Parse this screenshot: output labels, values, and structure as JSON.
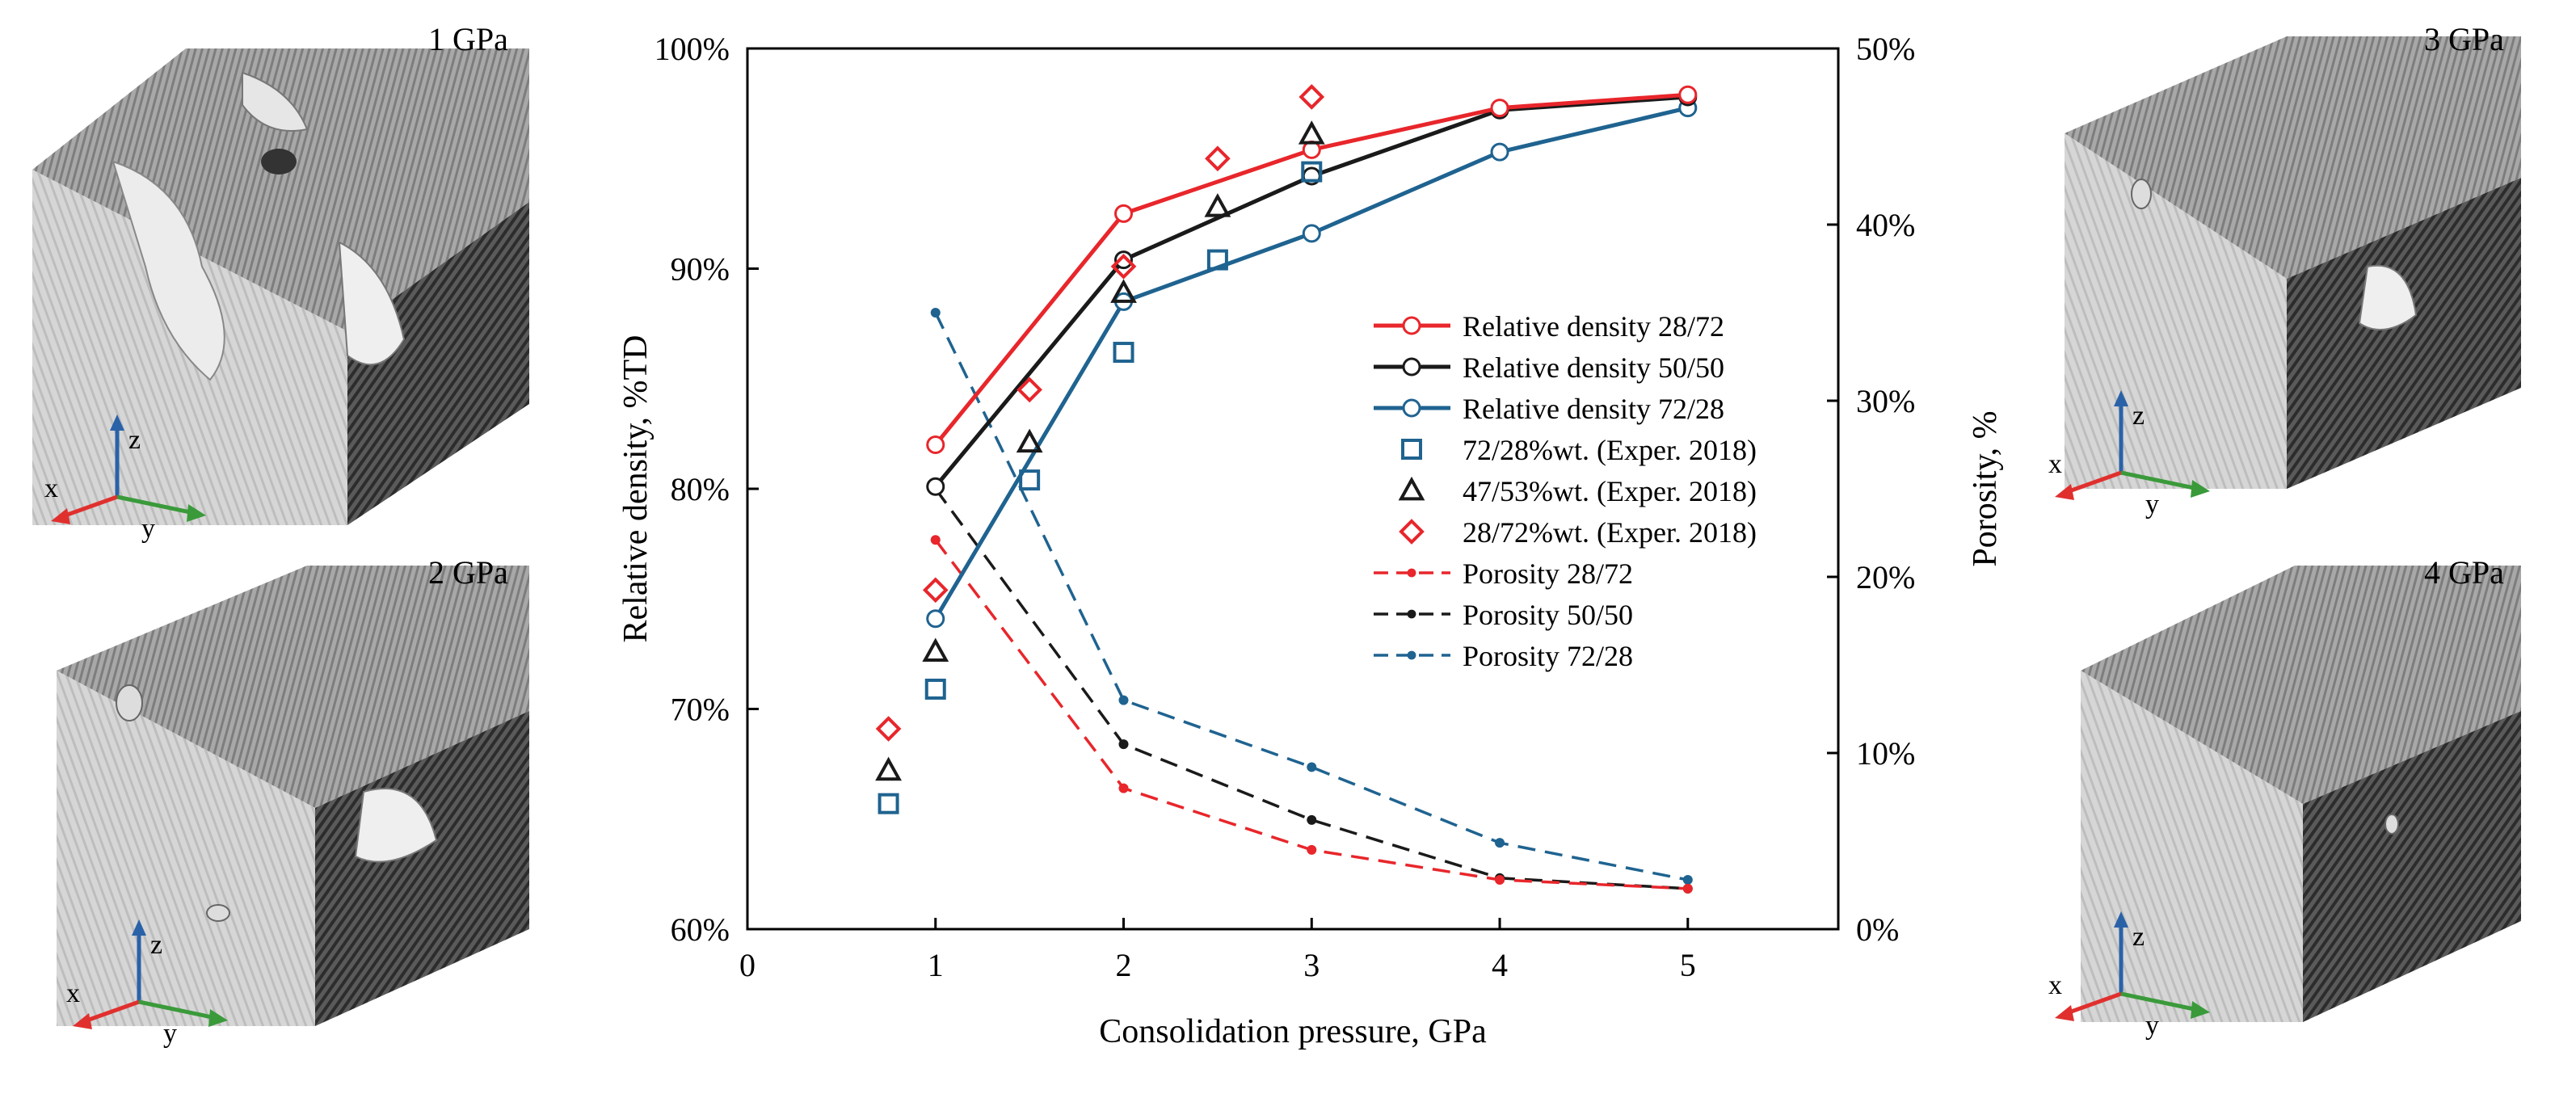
{
  "colors": {
    "red": "#e8262b",
    "black": "#1a1a1a",
    "blue": "#1f6390",
    "x_axis_arrow": "#e0302e",
    "y_axis_arrow": "#3a9a3a",
    "z_axis_arrow": "#2a62a8"
  },
  "panels": [
    {
      "label": "1 GPa",
      "axes": {
        "x": "x",
        "y": "y",
        "z": "z"
      }
    },
    {
      "label": "2 GPa",
      "axes": {
        "x": "x",
        "y": "y",
        "z": "z"
      }
    },
    {
      "label": "3 GPa",
      "axes": {
        "x": "x",
        "y": "y",
        "z": "z"
      }
    },
    {
      "label": "4 GPa",
      "axes": {
        "x": "x",
        "y": "y",
        "z": "z"
      }
    }
  ],
  "chart_data": {
    "type": "line",
    "xlabel": "Consolidation pressure, GPa",
    "ylabel": "Relative density, %TD",
    "y2label": "Porosity, %",
    "xlim": [
      0,
      5.8
    ],
    "ylim": [
      60,
      100
    ],
    "y2lim": [
      0,
      50
    ],
    "x_ticks": [
      0,
      1,
      2,
      3,
      4,
      5
    ],
    "y_ticks": [
      60,
      70,
      80,
      90,
      100
    ],
    "y_tick_labels": [
      "60%",
      "70%",
      "80%",
      "90%",
      "100%"
    ],
    "y2_ticks": [
      0,
      10,
      20,
      30,
      40,
      50
    ],
    "y2_tick_labels": [
      "0%",
      "10%",
      "20%",
      "30%",
      "40%",
      "50%"
    ],
    "legend_position": "center-right",
    "series": [
      {
        "name": "Relative density 28/72",
        "axis": "left",
        "style": "line-open-circle",
        "color": "red",
        "x": [
          1,
          2,
          3,
          4,
          5
        ],
        "values": [
          82.0,
          92.5,
          95.4,
          97.3,
          97.9
        ]
      },
      {
        "name": "Relative density 50/50",
        "axis": "left",
        "style": "line-open-circle",
        "color": "black",
        "x": [
          1,
          2,
          3,
          4,
          5
        ],
        "values": [
          80.1,
          90.4,
          94.2,
          97.2,
          97.8
        ]
      },
      {
        "name": "Relative density 72/28",
        "axis": "left",
        "style": "line-open-circle",
        "color": "blue",
        "x": [
          1,
          2,
          3,
          4,
          5
        ],
        "values": [
          74.1,
          88.5,
          91.6,
          95.3,
          97.3
        ]
      },
      {
        "name": "72/28%wt. (Exper. 2018)",
        "axis": "left",
        "style": "square",
        "color": "blue",
        "x": [
          0.75,
          1,
          1.5,
          2,
          2.5,
          3
        ],
        "values": [
          65.7,
          70.9,
          80.4,
          86.2,
          90.4,
          94.4
        ]
      },
      {
        "name": "47/53%wt. (Exper. 2018)",
        "axis": "left",
        "style": "triangle",
        "color": "black",
        "x": [
          0.75,
          1,
          1.5,
          2,
          2.5,
          3
        ],
        "values": [
          67.2,
          72.6,
          82.1,
          88.9,
          92.8,
          96.1
        ]
      },
      {
        "name": "28/72%wt. (Exper. 2018)",
        "axis": "left",
        "style": "diamond",
        "color": "red",
        "x": [
          0.75,
          1,
          1.5,
          2,
          2.5,
          3
        ],
        "values": [
          69.1,
          75.4,
          84.5,
          90.1,
          95.0,
          97.8
        ]
      },
      {
        "name": "Porosity 28/72",
        "axis": "right",
        "style": "dashed-dot",
        "color": "red",
        "x": [
          1,
          2,
          3,
          4,
          5
        ],
        "values": [
          22.1,
          8.0,
          4.5,
          2.8,
          2.3
        ]
      },
      {
        "name": "Porosity 50/50",
        "axis": "right",
        "style": "dashed-dot",
        "color": "black",
        "x": [
          1,
          2,
          3,
          4,
          5
        ],
        "values": [
          25.0,
          10.5,
          6.2,
          2.9,
          2.3
        ]
      },
      {
        "name": "Porosity 72/28",
        "axis": "right",
        "style": "dashed-dot",
        "color": "blue",
        "x": [
          1,
          2,
          3,
          4,
          5
        ],
        "values": [
          35.0,
          13.0,
          9.2,
          4.9,
          2.8
        ]
      }
    ]
  }
}
